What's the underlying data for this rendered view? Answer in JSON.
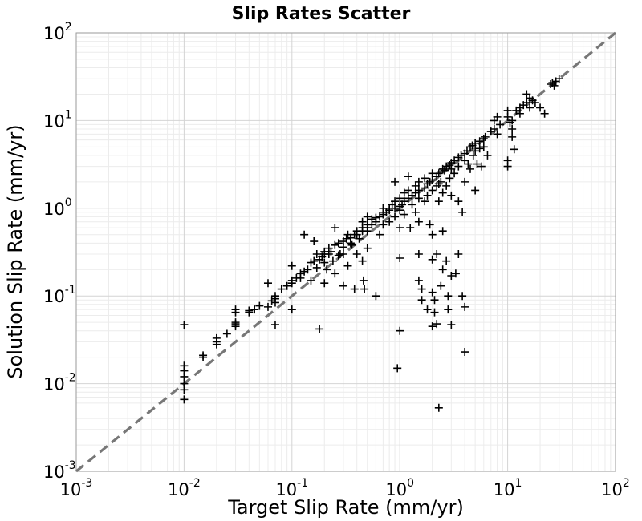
{
  "chart_data": {
    "type": "scatter",
    "title": "Slip Rates Scatter",
    "xlabel": "Target Slip Rate (mm/yr)",
    "ylabel": "Solution Slip Rate (mm/yr)",
    "xscale": "log",
    "yscale": "log",
    "xlim": [
      0.001,
      100
    ],
    "ylim": [
      0.001,
      100
    ],
    "grid": true,
    "legend": "none",
    "marker": "plus",
    "marker_color": "#000000",
    "reference_line": {
      "style": "dashed",
      "color": "#777777",
      "from": [
        0.001,
        0.001
      ],
      "to": [
        100,
        100
      ]
    },
    "x_ticks": [
      {
        "base": "10",
        "exp": "-3"
      },
      {
        "base": "10",
        "exp": "-2"
      },
      {
        "base": "10",
        "exp": "-1"
      },
      {
        "base": "10",
        "exp": "0"
      },
      {
        "base": "10",
        "exp": "1"
      },
      {
        "base": "10",
        "exp": "2"
      }
    ],
    "y_ticks": [
      {
        "base": "10",
        "exp": "-3"
      },
      {
        "base": "10",
        "exp": "-2"
      },
      {
        "base": "10",
        "exp": "-1"
      },
      {
        "base": "10",
        "exp": "0"
      },
      {
        "base": "10",
        "exp": "1"
      },
      {
        "base": "10",
        "exp": "2"
      }
    ],
    "points": [
      [
        0.01,
        0.047
      ],
      [
        0.01,
        0.016
      ],
      [
        0.01,
        0.014
      ],
      [
        0.01,
        0.012
      ],
      [
        0.01,
        0.01
      ],
      [
        0.01,
        0.0085
      ],
      [
        0.01,
        0.0066
      ],
      [
        0.015,
        0.02
      ],
      [
        0.015,
        0.021
      ],
      [
        0.02,
        0.028
      ],
      [
        0.02,
        0.03
      ],
      [
        0.02,
        0.033
      ],
      [
        0.025,
        0.037
      ],
      [
        0.03,
        0.045
      ],
      [
        0.03,
        0.048
      ],
      [
        0.03,
        0.05
      ],
      [
        0.03,
        0.065
      ],
      [
        0.03,
        0.07
      ],
      [
        0.04,
        0.065
      ],
      [
        0.04,
        0.068
      ],
      [
        0.045,
        0.07
      ],
      [
        0.05,
        0.077
      ],
      [
        0.06,
        0.075
      ],
      [
        0.065,
        0.088
      ],
      [
        0.07,
        0.093
      ],
      [
        0.07,
        0.1
      ],
      [
        0.07,
        0.084
      ],
      [
        0.07,
        0.047
      ],
      [
        0.06,
        0.14
      ],
      [
        0.08,
        0.12
      ],
      [
        0.09,
        0.13
      ],
      [
        0.1,
        0.15
      ],
      [
        0.1,
        0.14
      ],
      [
        0.1,
        0.22
      ],
      [
        0.1,
        0.07
      ],
      [
        0.11,
        0.16
      ],
      [
        0.12,
        0.18
      ],
      [
        0.12,
        0.16
      ],
      [
        0.13,
        0.19
      ],
      [
        0.13,
        0.5
      ],
      [
        0.14,
        0.2
      ],
      [
        0.15,
        0.24
      ],
      [
        0.15,
        0.15
      ],
      [
        0.16,
        0.25
      ],
      [
        0.16,
        0.42
      ],
      [
        0.17,
        0.3
      ],
      [
        0.17,
        0.21
      ],
      [
        0.18,
        0.26
      ],
      [
        0.18,
        0.042
      ],
      [
        0.19,
        0.28
      ],
      [
        0.2,
        0.32
      ],
      [
        0.2,
        0.3
      ],
      [
        0.2,
        0.24
      ],
      [
        0.2,
        0.14
      ],
      [
        0.21,
        0.2
      ],
      [
        0.22,
        0.35
      ],
      [
        0.22,
        0.3
      ],
      [
        0.23,
        0.32
      ],
      [
        0.24,
        0.25
      ],
      [
        0.25,
        0.38
      ],
      [
        0.25,
        0.6
      ],
      [
        0.25,
        0.18
      ],
      [
        0.27,
        0.4
      ],
      [
        0.27,
        0.29
      ],
      [
        0.28,
        0.3
      ],
      [
        0.3,
        0.42
      ],
      [
        0.3,
        0.36
      ],
      [
        0.3,
        0.3
      ],
      [
        0.3,
        0.13
      ],
      [
        0.32,
        0.45
      ],
      [
        0.33,
        0.5
      ],
      [
        0.33,
        0.22
      ],
      [
        0.35,
        0.46
      ],
      [
        0.35,
        0.4
      ],
      [
        0.36,
        0.38
      ],
      [
        0.38,
        0.5
      ],
      [
        0.38,
        0.12
      ],
      [
        0.4,
        0.55
      ],
      [
        0.4,
        0.5
      ],
      [
        0.4,
        0.3
      ],
      [
        0.42,
        0.45
      ],
      [
        0.45,
        0.6
      ],
      [
        0.45,
        0.55
      ],
      [
        0.45,
        0.7
      ],
      [
        0.45,
        0.25
      ],
      [
        0.46,
        0.15
      ],
      [
        0.47,
        0.12
      ],
      [
        0.5,
        0.65
      ],
      [
        0.5,
        0.6
      ],
      [
        0.5,
        0.55
      ],
      [
        0.5,
        0.35
      ],
      [
        0.5,
        0.8
      ],
      [
        0.55,
        0.65
      ],
      [
        0.55,
        0.75
      ],
      [
        0.6,
        0.78
      ],
      [
        0.6,
        0.7
      ],
      [
        0.6,
        0.1
      ],
      [
        0.65,
        0.8
      ],
      [
        0.65,
        0.5
      ],
      [
        0.7,
        0.85
      ],
      [
        0.7,
        0.9
      ],
      [
        0.7,
        1.0
      ],
      [
        0.7,
        0.65
      ],
      [
        0.75,
        0.9
      ],
      [
        0.8,
        1.0
      ],
      [
        0.8,
        0.95
      ],
      [
        0.8,
        0.7
      ],
      [
        0.85,
        1.1
      ],
      [
        0.9,
        1.0
      ],
      [
        0.9,
        1.2
      ],
      [
        0.9,
        0.8
      ],
      [
        0.9,
        2.0
      ],
      [
        0.95,
        0.015
      ],
      [
        1.0,
        1.05
      ],
      [
        1.0,
        0.95
      ],
      [
        1.0,
        1.3
      ],
      [
        1.0,
        0.6
      ],
      [
        1.0,
        0.27
      ],
      [
        1.0,
        0.04
      ],
      [
        1.05,
        1.1
      ],
      [
        1.1,
        1.2
      ],
      [
        1.1,
        1.5
      ],
      [
        1.1,
        0.85
      ],
      [
        1.2,
        1.3
      ],
      [
        1.2,
        1.6
      ],
      [
        1.2,
        2.3
      ],
      [
        1.25,
        0.6
      ],
      [
        1.3,
        1.4
      ],
      [
        1.3,
        1.1
      ],
      [
        1.4,
        1.5
      ],
      [
        1.4,
        1.8
      ],
      [
        1.4,
        0.9
      ],
      [
        1.5,
        1.6
      ],
      [
        1.5,
        2.0
      ],
      [
        1.5,
        1.3
      ],
      [
        1.5,
        0.7
      ],
      [
        1.5,
        0.3
      ],
      [
        1.5,
        0.15
      ],
      [
        1.6,
        0.12
      ],
      [
        1.6,
        0.09
      ],
      [
        1.7,
        1.7
      ],
      [
        1.7,
        2.2
      ],
      [
        1.7,
        1.2
      ],
      [
        1.8,
        1.9
      ],
      [
        1.8,
        1.4
      ],
      [
        1.8,
        0.07
      ],
      [
        1.9,
        2.0
      ],
      [
        1.9,
        0.65
      ],
      [
        2.0,
        2.1
      ],
      [
        2.0,
        1.6
      ],
      [
        2.0,
        2.5
      ],
      [
        2.0,
        0.5
      ],
      [
        2.0,
        0.26
      ],
      [
        2.0,
        0.11
      ],
      [
        2.0,
        0.045
      ],
      [
        2.1,
        0.09
      ],
      [
        2.1,
        0.065
      ],
      [
        2.2,
        2.3
      ],
      [
        2.2,
        1.8
      ],
      [
        2.2,
        0.3
      ],
      [
        2.2,
        0.048
      ],
      [
        2.3,
        2.5
      ],
      [
        2.3,
        1.9
      ],
      [
        2.3,
        1.2
      ],
      [
        2.3,
        0.0053
      ],
      [
        2.4,
        2.6
      ],
      [
        2.4,
        2.0
      ],
      [
        2.4,
        0.13
      ],
      [
        2.5,
        2.8
      ],
      [
        2.5,
        1.5
      ],
      [
        2.5,
        0.55
      ],
      [
        2.5,
        0.2
      ],
      [
        2.6,
        2.7
      ],
      [
        2.7,
        3.0
      ],
      [
        2.7,
        1.8
      ],
      [
        2.7,
        0.25
      ],
      [
        2.8,
        0.1
      ],
      [
        2.8,
        0.07
      ],
      [
        2.9,
        3.1
      ],
      [
        2.9,
        2.2
      ],
      [
        3.0,
        3.3
      ],
      [
        3.0,
        2.8
      ],
      [
        3.0,
        1.4
      ],
      [
        3.0,
        0.17
      ],
      [
        3.0,
        0.047
      ],
      [
        3.2,
        3.5
      ],
      [
        3.2,
        2.5
      ],
      [
        3.3,
        0.18
      ],
      [
        3.5,
        3.8
      ],
      [
        3.5,
        3.0
      ],
      [
        3.5,
        1.2
      ],
      [
        3.5,
        0.3
      ],
      [
        3.7,
        4.0
      ],
      [
        3.8,
        0.9
      ],
      [
        3.8,
        0.1
      ],
      [
        4.0,
        4.2
      ],
      [
        4.0,
        3.5
      ],
      [
        4.0,
        2.0
      ],
      [
        4.0,
        0.075
      ],
      [
        4.0,
        0.023
      ],
      [
        4.2,
        4.5
      ],
      [
        4.3,
        3.2
      ],
      [
        4.5,
        5.0
      ],
      [
        4.5,
        2.8
      ],
      [
        4.7,
        5.2
      ],
      [
        4.8,
        4.0
      ],
      [
        5.0,
        5.5
      ],
      [
        5.0,
        4.5
      ],
      [
        5.0,
        1.6
      ],
      [
        5.2,
        3.2
      ],
      [
        5.5,
        5.8
      ],
      [
        5.5,
        4.8
      ],
      [
        5.7,
        3.0
      ],
      [
        6.0,
        6.2
      ],
      [
        6.0,
        5.0
      ],
      [
        6.2,
        6.5
      ],
      [
        6.5,
        4.0
      ],
      [
        7.0,
        7.5
      ],
      [
        7.5,
        8.0
      ],
      [
        7.5,
        10.0
      ],
      [
        8.0,
        7.0
      ],
      [
        8.0,
        11.0
      ],
      [
        8.5,
        9.0
      ],
      [
        10.0,
        11.0
      ],
      [
        10.0,
        13.0
      ],
      [
        10.0,
        3.5
      ],
      [
        10.0,
        3.0
      ],
      [
        10.5,
        9.5
      ],
      [
        11.0,
        10.0
      ],
      [
        11.0,
        8.0
      ],
      [
        11.0,
        6.5
      ],
      [
        11.5,
        4.7
      ],
      [
        12.0,
        13.0
      ],
      [
        13.0,
        14.0
      ],
      [
        13.0,
        12.0
      ],
      [
        14.0,
        15.0
      ],
      [
        15.0,
        16.0
      ],
      [
        15.0,
        20.0
      ],
      [
        16.0,
        18.0
      ],
      [
        16.0,
        14.0
      ],
      [
        17.0,
        17.0
      ],
      [
        18.0,
        16.0
      ],
      [
        20.0,
        14.0
      ],
      [
        22.0,
        12.0
      ],
      [
        25.0,
        26.0
      ],
      [
        26.0,
        27.0
      ],
      [
        27.0,
        25.0
      ],
      [
        28.0,
        28.0
      ],
      [
        30.0,
        30.0
      ]
    ]
  }
}
